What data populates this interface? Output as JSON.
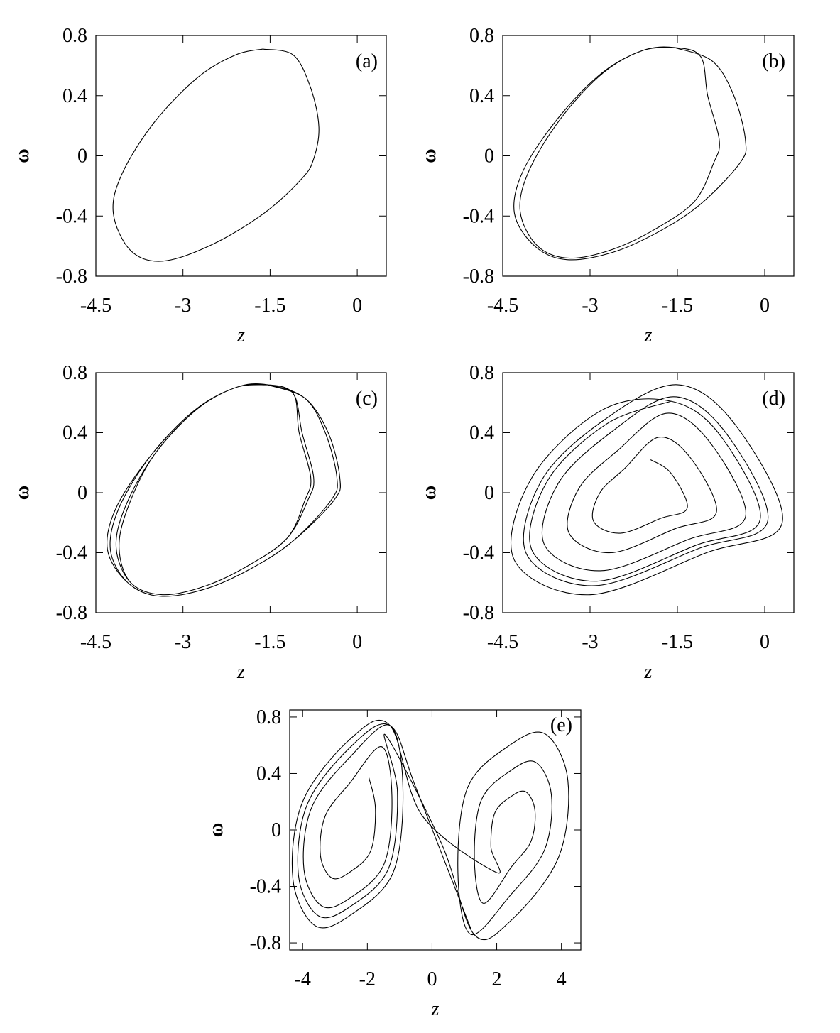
{
  "chart_data": [
    {
      "type": "line",
      "label": "(a)",
      "xlabel": "z",
      "ylabel": "ω",
      "xlim": [
        -4.5,
        0.5
      ],
      "ylim": [
        -0.8,
        0.8
      ],
      "xticks": [
        -4.5,
        -3,
        -1.5,
        0
      ],
      "yticks": [
        -0.8,
        -0.4,
        0,
        0.4,
        0.8
      ],
      "series": [
        {
          "color": "#000000",
          "x": [
            -1.63,
            -1.1,
            -0.8,
            -0.66,
            -0.75,
            -0.95,
            -1.6,
            -2.5,
            -3.35,
            -3.9,
            -4.2,
            -4.05,
            -3.5,
            -2.75,
            -2.1,
            -1.63
          ],
          "values": [
            0.71,
            0.67,
            0.45,
            0.19,
            -0.02,
            -0.15,
            -0.38,
            -0.59,
            -0.7,
            -0.63,
            -0.38,
            -0.12,
            0.22,
            0.52,
            0.67,
            0.71
          ]
        }
      ]
    },
    {
      "type": "line",
      "label": "(b)",
      "xlabel": "z",
      "ylabel": "ω",
      "xlim": [
        -4.5,
        0.5
      ],
      "ylim": [
        -0.8,
        0.8
      ],
      "xticks": [
        -4.5,
        -3,
        -1.5,
        0
      ],
      "yticks": [
        -0.8,
        -0.4,
        0,
        0.4,
        0.8
      ],
      "series": [
        {
          "color": "#000000",
          "x": [
            -1.55,
            -0.9,
            -0.53,
            -0.33,
            -0.43,
            -1.1,
            -1.8,
            -2.6,
            -3.4,
            -3.95,
            -4.3,
            -4.15,
            -3.55,
            -2.8,
            -2.1,
            -1.55,
            -1.1,
            -0.98,
            -0.78,
            -0.88,
            -1.2,
            -1.85,
            -2.6,
            -3.35,
            -3.9,
            -4.2,
            -4.05,
            -3.5,
            -2.78,
            -2.1,
            -1.55
          ],
          "values": [
            0.72,
            0.63,
            0.4,
            0.1,
            -0.05,
            -0.32,
            -0.5,
            -0.64,
            -0.69,
            -0.6,
            -0.38,
            -0.1,
            0.25,
            0.55,
            0.7,
            0.72,
            0.66,
            0.4,
            0.1,
            -0.05,
            -0.3,
            -0.48,
            -0.62,
            -0.68,
            -0.6,
            -0.37,
            -0.1,
            0.25,
            0.55,
            0.7,
            0.72
          ]
        }
      ]
    },
    {
      "type": "line",
      "label": "(c)",
      "xlabel": "z",
      "ylabel": "ω",
      "xlim": [
        -4.5,
        0.5
      ],
      "ylim": [
        -0.8,
        0.8
      ],
      "xticks": [
        -4.5,
        -3,
        -1.5,
        0
      ],
      "yticks": [
        -0.8,
        -0.4,
        0,
        0.4,
        0.8
      ],
      "series": [
        {
          "color": "#000000",
          "x": [
            -1.55,
            -0.9,
            -0.5,
            -0.3,
            -0.4,
            -1.1,
            -1.8,
            -2.6,
            -3.4,
            -3.95,
            -4.25,
            -4.1,
            -3.55,
            -2.8,
            -2.1,
            -1.55,
            -1.1,
            -1.0,
            -0.8,
            -0.9,
            -1.2,
            -1.85,
            -2.6,
            -3.35,
            -3.9,
            -4.1,
            -3.95,
            -3.5,
            -2.78,
            -2.1,
            -1.55,
            -0.9,
            -0.55,
            -0.35,
            -0.45,
            -1.1,
            -1.8,
            -2.6,
            -3.4,
            -3.95,
            -4.3,
            -4.15,
            -3.55,
            -2.8,
            -2.1,
            -1.55,
            -1.1,
            -0.95,
            -0.75,
            -0.85,
            -1.2,
            -1.85,
            -2.6,
            -3.35,
            -3.9,
            -4.15,
            -4.0,
            -3.5,
            -2.78,
            -2.1,
            -1.55
          ],
          "values": [
            0.72,
            0.63,
            0.4,
            0.1,
            -0.05,
            -0.32,
            -0.5,
            -0.64,
            -0.69,
            -0.6,
            -0.38,
            -0.1,
            0.25,
            0.55,
            0.7,
            0.72,
            0.66,
            0.4,
            0.1,
            -0.05,
            -0.3,
            -0.48,
            -0.62,
            -0.68,
            -0.6,
            -0.37,
            -0.1,
            0.25,
            0.55,
            0.7,
            0.72,
            0.63,
            0.4,
            0.1,
            -0.05,
            -0.32,
            -0.5,
            -0.64,
            -0.69,
            -0.6,
            -0.38,
            -0.1,
            0.25,
            0.55,
            0.7,
            0.72,
            0.66,
            0.4,
            0.1,
            -0.05,
            -0.3,
            -0.48,
            -0.62,
            -0.68,
            -0.6,
            -0.37,
            -0.1,
            0.25,
            0.55,
            0.7,
            0.72
          ]
        }
      ]
    },
    {
      "type": "line",
      "label": "(d)",
      "xlabel": "z",
      "ylabel": "ω",
      "xlim": [
        -4.5,
        0.5
      ],
      "ylim": [
        -0.8,
        0.8
      ],
      "xticks": [
        -4.5,
        -3,
        -1.5,
        0
      ],
      "yticks": [
        -0.8,
        -0.4,
        0,
        0.4,
        0.8
      ],
      "series": [
        {
          "color": "#000000",
          "x": [
            -1.96,
            -1.61,
            -1.33,
            -1.78,
            -2.48,
            -2.94,
            -2.83,
            -2.41,
            -1.82,
            -1.27,
            -0.83,
            -1.54,
            -2.64,
            -3.36,
            -3.19,
            -2.53,
            -1.68,
            -0.93,
            -0.33,
            -1.3,
            -2.8,
            -3.78,
            -3.55,
            -2.65,
            -1.57,
            -0.67,
            0.05,
            -1.12,
            -2.92,
            -4.09,
            -3.82,
            -2.74,
            -1.5,
            -0.5,
            0.3,
            -1.0,
            -3.0,
            -4.3,
            -4.0,
            -2.8,
            -1.61,
            -0.76,
            -0.08,
            -1.18,
            -2.88,
            -3.99,
            -3.73,
            -2.71,
            -1.61
          ],
          "values": [
            0.22,
            0.13,
            -0.1,
            -0.17,
            -0.27,
            -0.19,
            0.0,
            0.16,
            0.37,
            0.23,
            -0.13,
            -0.24,
            -0.4,
            -0.27,
            0.03,
            0.28,
            0.53,
            0.33,
            -0.16,
            -0.31,
            -0.52,
            -0.35,
            0.06,
            0.4,
            0.64,
            0.4,
            -0.19,
            -0.37,
            -0.62,
            -0.41,
            0.09,
            0.49,
            0.72,
            0.45,
            -0.2,
            -0.4,
            -0.68,
            -0.45,
            0.1,
            0.55,
            0.61,
            0.38,
            -0.18,
            -0.35,
            -0.59,
            -0.39,
            0.08,
            0.46,
            0.61
          ]
        }
      ]
    },
    {
      "type": "line",
      "label": "(e)",
      "xlabel": "z",
      "ylabel": "ω",
      "xlim": [
        -4.4,
        4.6
      ],
      "ylim": [
        -0.85,
        0.85
      ],
      "xticks": [
        -4,
        -2,
        0,
        2,
        4
      ],
      "yticks": [
        -0.8,
        -0.4,
        0,
        0.4,
        0.8
      ],
      "series": [
        {
          "color": "#000000",
          "x": [
            -1.95,
            -1.75,
            -1.9,
            -2.55,
            -3.1,
            -3.45,
            -3.3,
            -2.55,
            -1.56,
            -1.24,
            -1.48,
            -2.52,
            -3.4,
            -3.96,
            -3.72,
            -2.52,
            -1.3,
            -0.9,
            -1.2,
            -2.5,
            -3.6,
            -4.3,
            -4.0,
            -2.5,
            -1.3,
            -0.3,
            1.98,
            1.82,
            1.94,
            2.46,
            2.9,
            3.18,
            3.06,
            2.46,
            1.59,
            1.31,
            1.52,
            2.43,
            3.2,
            3.69,
            3.48,
            2.43,
            1.2,
            0.8,
            1.1,
            2.4,
            3.5,
            4.2,
            3.9,
            2.4,
            1.3,
            0.3,
            -1.43,
            -1.07,
            -1.34,
            -2.51,
            -3.5,
            -4.13,
            -3.86,
            -2.51,
            -1.3,
            -0.5,
            1.2
          ],
          "values": [
            0.37,
            0.15,
            -0.15,
            -0.3,
            -0.34,
            -0.18,
            0.1,
            0.33,
            0.59,
            0.24,
            -0.24,
            -0.48,
            -0.54,
            -0.28,
            0.16,
            0.52,
            0.74,
            0.3,
            -0.3,
            -0.6,
            -0.68,
            -0.35,
            0.2,
            0.65,
            0.74,
            0.1,
            -0.3,
            -0.12,
            0.12,
            0.24,
            0.27,
            0.14,
            -0.08,
            -0.26,
            -0.52,
            -0.21,
            0.21,
            0.42,
            0.48,
            0.25,
            -0.14,
            -0.46,
            -0.74,
            -0.3,
            0.3,
            0.6,
            0.68,
            0.35,
            -0.2,
            -0.65,
            -0.74,
            -0.1,
            0.67,
            0.27,
            -0.27,
            -0.54,
            -0.61,
            -0.32,
            0.18,
            0.59,
            0.74,
            0.3,
            -0.7
          ]
        }
      ]
    }
  ]
}
